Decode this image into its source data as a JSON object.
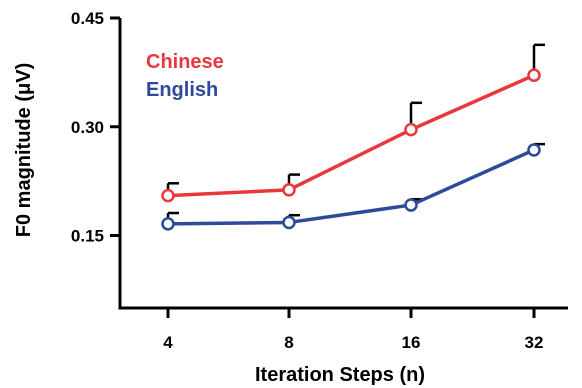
{
  "chart_data": {
    "type": "line",
    "xlabel": "Iteration Steps (n)",
    "ylabel": "F0 magnitude (μV)",
    "categories": [
      "4",
      "8",
      "16",
      "32"
    ],
    "yticks": [
      "0.15",
      "0.30",
      "0.45"
    ],
    "ylim": [
      0.05,
      0.45
    ],
    "grid": false,
    "legend_position": "top-left",
    "series": [
      {
        "name": "Chinese",
        "color": "#e8383d",
        "values": [
          0.205,
          0.213,
          0.296,
          0.371
        ],
        "error_upper": [
          0.017,
          0.021,
          0.037,
          0.042
        ]
      },
      {
        "name": "English",
        "color": "#2e4a9a",
        "values": [
          0.166,
          0.168,
          0.192,
          0.268
        ],
        "error_upper": [
          0.015,
          0.01,
          0.008,
          0.008
        ]
      }
    ]
  }
}
